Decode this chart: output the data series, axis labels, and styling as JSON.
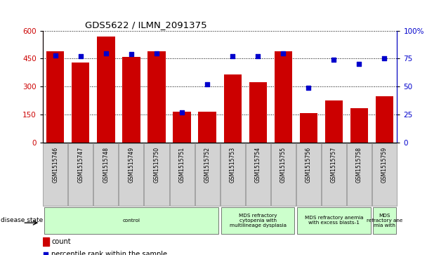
{
  "title": "GDS5622 / ILMN_2091375",
  "samples": [
    "GSM1515746",
    "GSM1515747",
    "GSM1515748",
    "GSM1515749",
    "GSM1515750",
    "GSM1515751",
    "GSM1515752",
    "GSM1515753",
    "GSM1515754",
    "GSM1515755",
    "GSM1515756",
    "GSM1515757",
    "GSM1515758",
    "GSM1515759"
  ],
  "counts": [
    490,
    430,
    570,
    460,
    490,
    165,
    165,
    365,
    325,
    490,
    160,
    225,
    185,
    250
  ],
  "percentiles": [
    78,
    77,
    80,
    79,
    80,
    27,
    52,
    77,
    77,
    80,
    49,
    74,
    70,
    75
  ],
  "bar_color": "#cc0000",
  "dot_color": "#0000cc",
  "ylim_left": [
    0,
    600
  ],
  "ylim_right": [
    0,
    100
  ],
  "yticks_left": [
    0,
    150,
    300,
    450,
    600
  ],
  "yticks_right": [
    0,
    25,
    50,
    75,
    100
  ],
  "ytick_labels_right": [
    "0",
    "25",
    "50",
    "75",
    "100%"
  ],
  "disease_groups": [
    {
      "label": "control",
      "start": 0,
      "end": 7
    },
    {
      "label": "MDS refractory\ncytopenia with\nmultilineage dysplasia",
      "start": 7,
      "end": 10
    },
    {
      "label": "MDS refractory anemia\nwith excess blasts-1",
      "start": 10,
      "end": 13
    },
    {
      "label": "MDS\nrefractory ane\nmia with",
      "start": 13,
      "end": 14
    }
  ],
  "disease_state_label": "disease state",
  "legend_count_label": "count",
  "legend_percentile_label": "percentile rank within the sample",
  "background_color": "#ffffff",
  "tick_label_bg": "#d3d3d3",
  "group_color": "#ccffcc"
}
